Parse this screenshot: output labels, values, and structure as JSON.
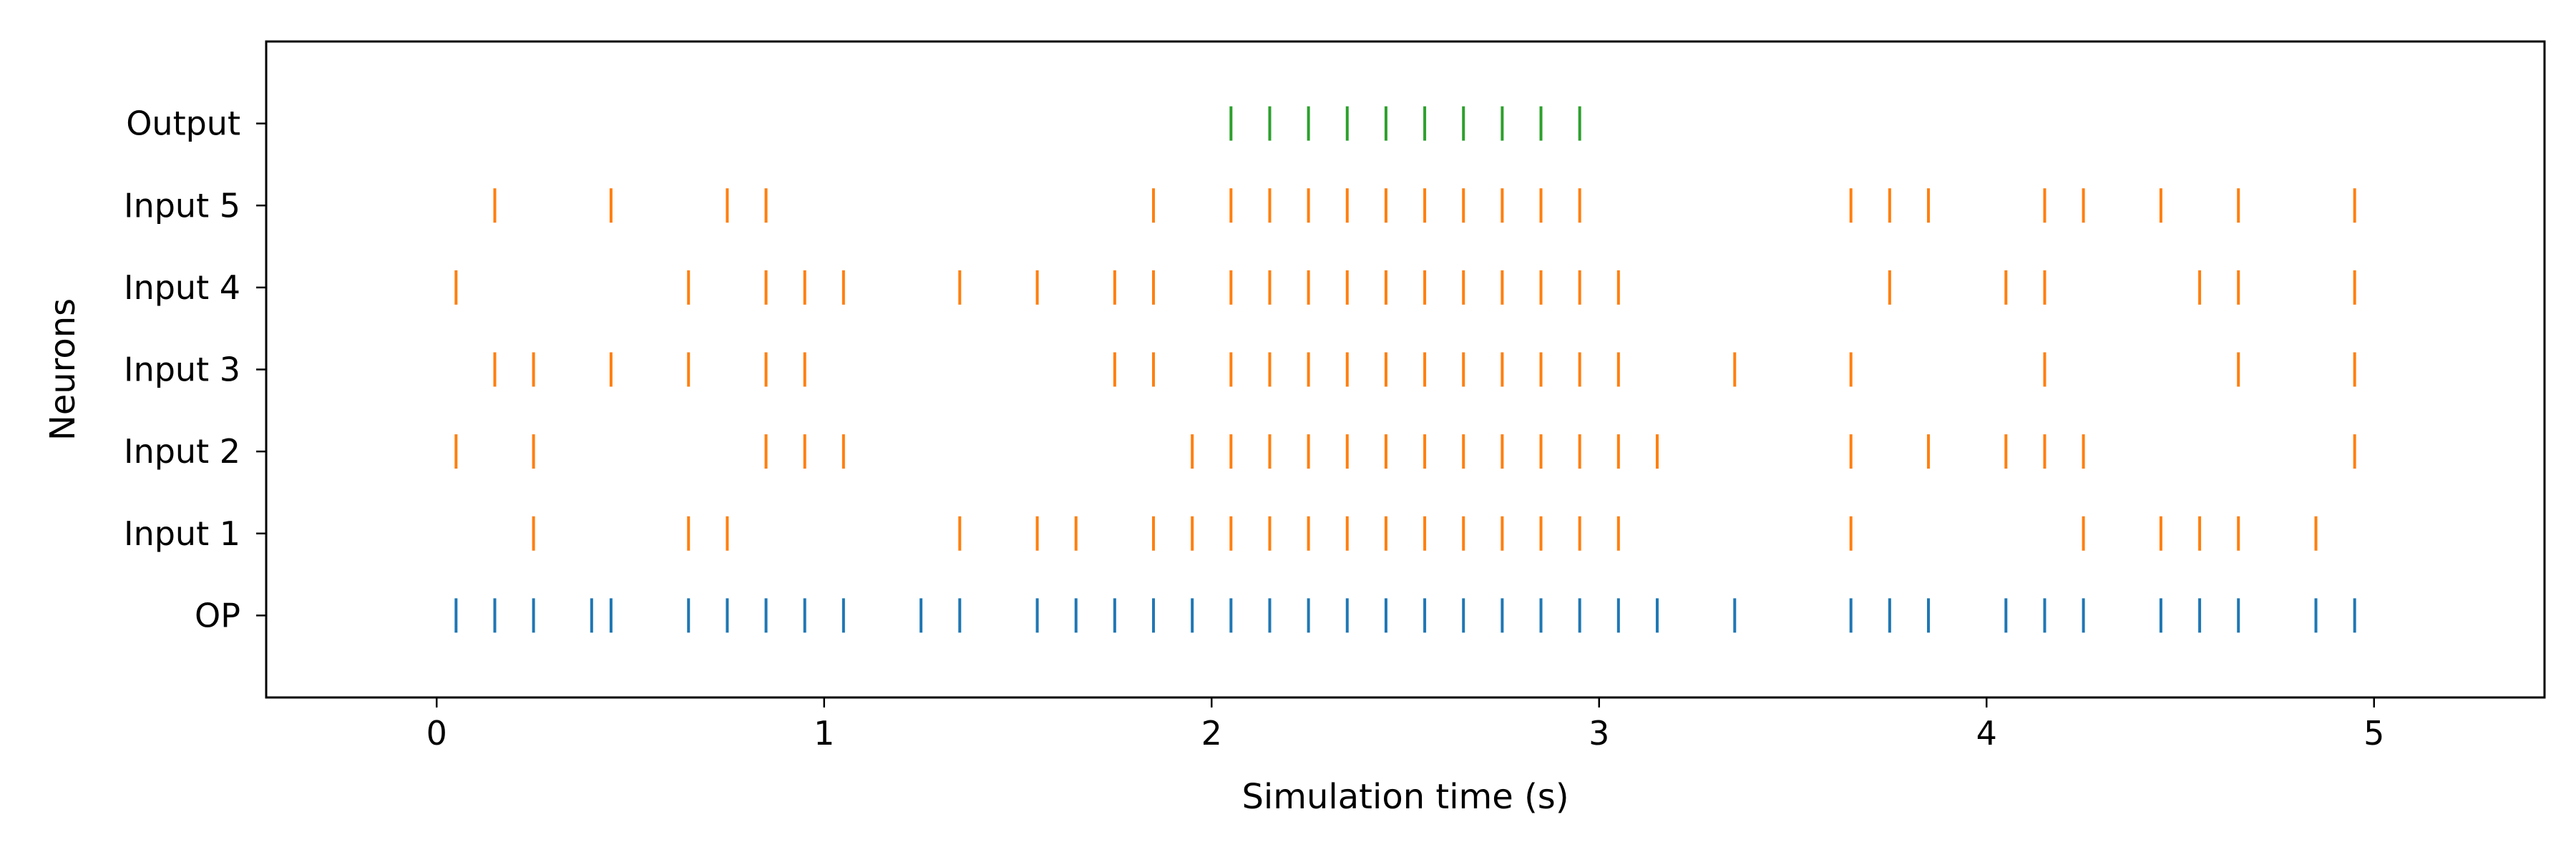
{
  "chart_data": {
    "type": "raster",
    "xlabel": "Simulation time (s)",
    "ylabel": "Neurons",
    "xlim": [
      -0.44,
      5.44
    ],
    "ylim": [
      -1,
      7
    ],
    "xticks": [
      0,
      1,
      2,
      3,
      4,
      5
    ],
    "xtick_labels": [
      "0",
      "1",
      "2",
      "3",
      "4",
      "5"
    ],
    "grid": false,
    "colors": {
      "op": "#1f77b4",
      "input": "#ff7f0e",
      "output": "#2ca02c"
    },
    "series": [
      {
        "name": "OP",
        "color_key": "op",
        "spikes": [
          0.05,
          0.15,
          0.25,
          0.4,
          0.45,
          0.65,
          0.75,
          0.85,
          0.95,
          1.05,
          1.25,
          1.35,
          1.55,
          1.65,
          1.75,
          1.85,
          1.95,
          2.05,
          2.15,
          2.25,
          2.35,
          2.45,
          2.55,
          2.65,
          2.75,
          2.85,
          2.95,
          3.05,
          3.15,
          3.35,
          3.65,
          3.75,
          3.85,
          4.05,
          4.15,
          4.25,
          4.45,
          4.55,
          4.65,
          4.85,
          4.95
        ]
      },
      {
        "name": "Input 1",
        "color_key": "input",
        "spikes": [
          0.25,
          0.65,
          0.75,
          1.35,
          1.55,
          1.65,
          1.85,
          1.95,
          2.05,
          2.15,
          2.25,
          2.35,
          2.45,
          2.55,
          2.65,
          2.75,
          2.85,
          2.95,
          3.05,
          3.65,
          4.25,
          4.45,
          4.55,
          4.65,
          4.85
        ]
      },
      {
        "name": "Input 2",
        "color_key": "input",
        "spikes": [
          0.05,
          0.25,
          0.85,
          0.95,
          1.05,
          1.95,
          2.05,
          2.15,
          2.25,
          2.35,
          2.45,
          2.55,
          2.65,
          2.75,
          2.85,
          2.95,
          3.05,
          3.15,
          3.65,
          3.85,
          4.05,
          4.15,
          4.25,
          4.95
        ]
      },
      {
        "name": "Input 3",
        "color_key": "input",
        "spikes": [
          0.15,
          0.25,
          0.45,
          0.65,
          0.85,
          0.95,
          1.75,
          1.85,
          2.05,
          2.15,
          2.25,
          2.35,
          2.45,
          2.55,
          2.65,
          2.75,
          2.85,
          2.95,
          3.05,
          3.35,
          3.65,
          4.15,
          4.65,
          4.95
        ]
      },
      {
        "name": "Input 4",
        "color_key": "input",
        "spikes": [
          0.05,
          0.65,
          0.85,
          0.95,
          1.05,
          1.35,
          1.55,
          1.75,
          1.85,
          2.05,
          2.15,
          2.25,
          2.35,
          2.45,
          2.55,
          2.65,
          2.75,
          2.85,
          2.95,
          3.05,
          3.75,
          4.05,
          4.15,
          4.55,
          4.65,
          4.95
        ]
      },
      {
        "name": "Input 5",
        "color_key": "input",
        "spikes": [
          0.15,
          0.45,
          0.75,
          0.85,
          1.85,
          2.05,
          2.15,
          2.25,
          2.35,
          2.45,
          2.55,
          2.65,
          2.75,
          2.85,
          2.95,
          3.65,
          3.75,
          3.85,
          4.15,
          4.25,
          4.45,
          4.65,
          4.95
        ]
      },
      {
        "name": "Output",
        "color_key": "output",
        "spikes": [
          2.05,
          2.15,
          2.25,
          2.35,
          2.45,
          2.55,
          2.65,
          2.75,
          2.85,
          2.95
        ]
      }
    ]
  }
}
